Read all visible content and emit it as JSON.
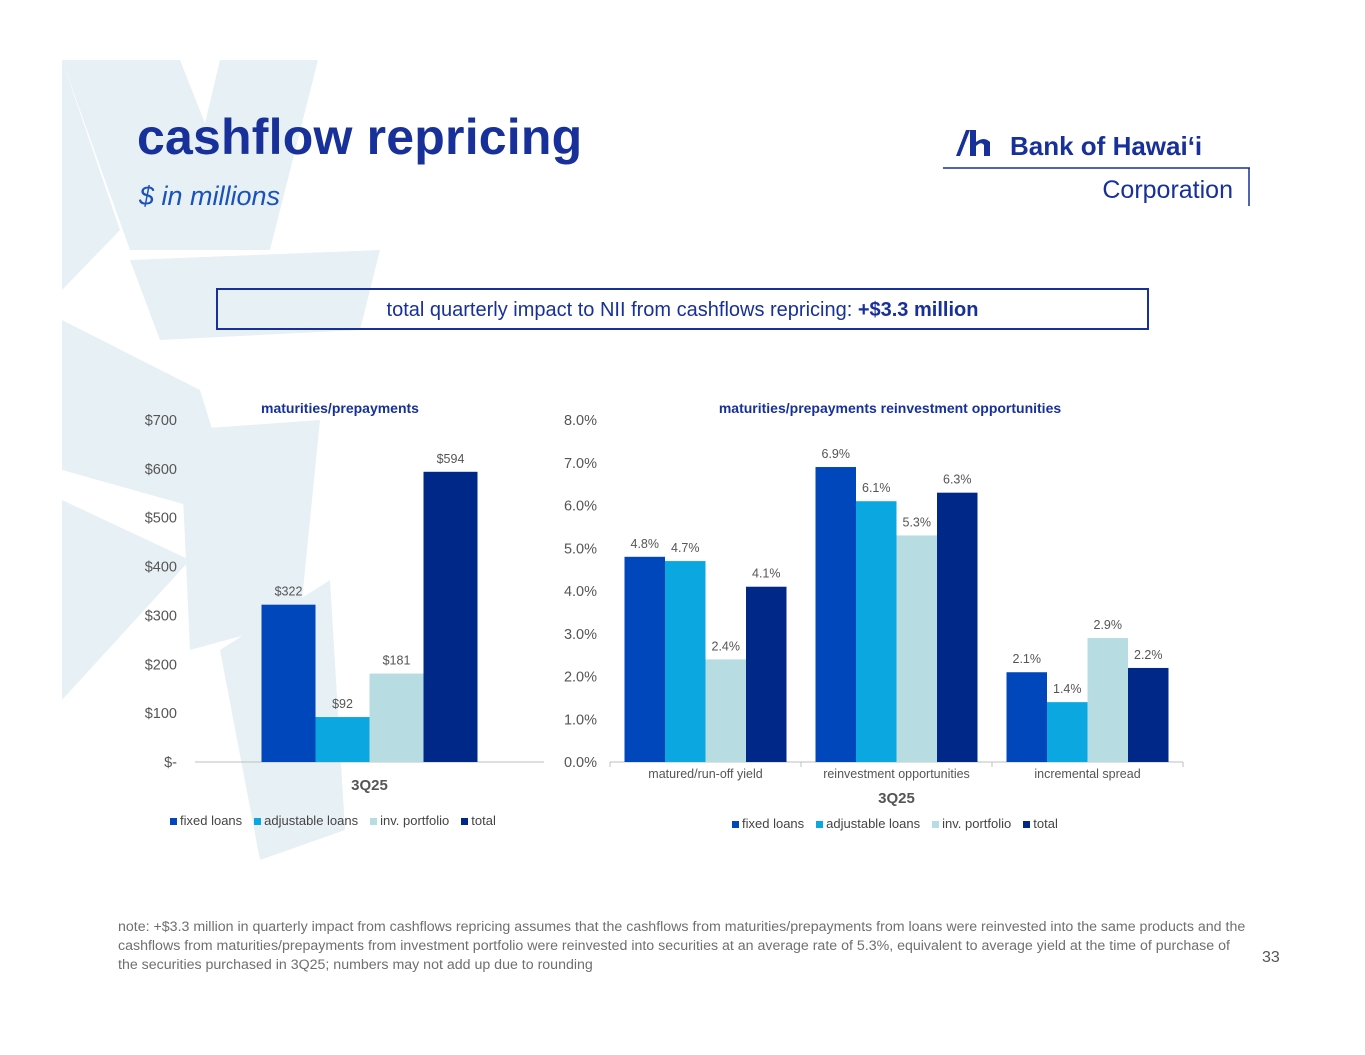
{
  "header": {
    "title": "cashflow repricing",
    "subtitle": "$ in millions"
  },
  "logo": {
    "name": "Bank of Hawai‘i",
    "sub": "Corporation"
  },
  "impact": {
    "text": "total quarterly impact to NII from cashflows repricing: ",
    "value": "+$3.3 million"
  },
  "colors": {
    "fixed_loans": "#0047BB",
    "adjustable_loans": "#0BA7E0",
    "inv_portfolio": "#B7DDE3",
    "total": "#002888",
    "brand": "#17309a"
  },
  "chart_data": [
    {
      "type": "bar",
      "title": "maturities/prepayments",
      "categories": [
        "3Q25"
      ],
      "series": [
        {
          "name": "fixed loans",
          "values": [
            322
          ],
          "labels": [
            "$322"
          ]
        },
        {
          "name": "adjustable loans",
          "values": [
            92
          ],
          "labels": [
            "$92"
          ]
        },
        {
          "name": "inv. portfolio",
          "values": [
            181
          ],
          "labels": [
            "$181"
          ]
        },
        {
          "name": "total",
          "values": [
            594
          ],
          "labels": [
            "$594"
          ]
        }
      ],
      "ylim": [
        0,
        700
      ],
      "yticks": [
        "$-",
        "$100",
        "$200",
        "$300",
        "$400",
        "$500",
        "$600",
        "$700"
      ],
      "xlabel": "3Q25",
      "legend": "bottom"
    },
    {
      "type": "bar",
      "title": "maturities/prepayments reinvestment opportunities",
      "categories": [
        "matured/run-off yield",
        "reinvestment opportunities",
        "incremental spread"
      ],
      "series": [
        {
          "name": "fixed loans",
          "values": [
            4.8,
            6.9,
            2.1
          ],
          "labels": [
            "4.8%",
            "6.9%",
            "2.1%"
          ]
        },
        {
          "name": "adjustable loans",
          "values": [
            4.7,
            6.1,
            1.4
          ],
          "labels": [
            "4.7%",
            "6.1%",
            "1.4%"
          ]
        },
        {
          "name": "inv. portfolio",
          "values": [
            2.4,
            5.3,
            2.9
          ],
          "labels": [
            "2.4%",
            "5.3%",
            "2.9%"
          ]
        },
        {
          "name": "total",
          "values": [
            4.1,
            6.3,
            2.2
          ],
          "labels": [
            "4.1%",
            "6.3%",
            "2.2%"
          ]
        }
      ],
      "ylim": [
        0,
        8
      ],
      "yticks": [
        "0.0%",
        "1.0%",
        "2.0%",
        "3.0%",
        "4.0%",
        "5.0%",
        "6.0%",
        "7.0%",
        "8.0%"
      ],
      "xlabel": "3Q25",
      "legend": "bottom"
    }
  ],
  "footer": {
    "note": "note: +$3.3 million in quarterly impact from cashflows repricing assumes that the cashflows from maturities/prepayments from loans were reinvested into the same products and the cashflows from maturities/prepayments from investment portfolio were reinvested into securities at an average rate of 5.3%, equivalent to average yield at the time of purchase of the securities purchased in 3Q25; numbers may not add up due to rounding",
    "page": "33"
  }
}
